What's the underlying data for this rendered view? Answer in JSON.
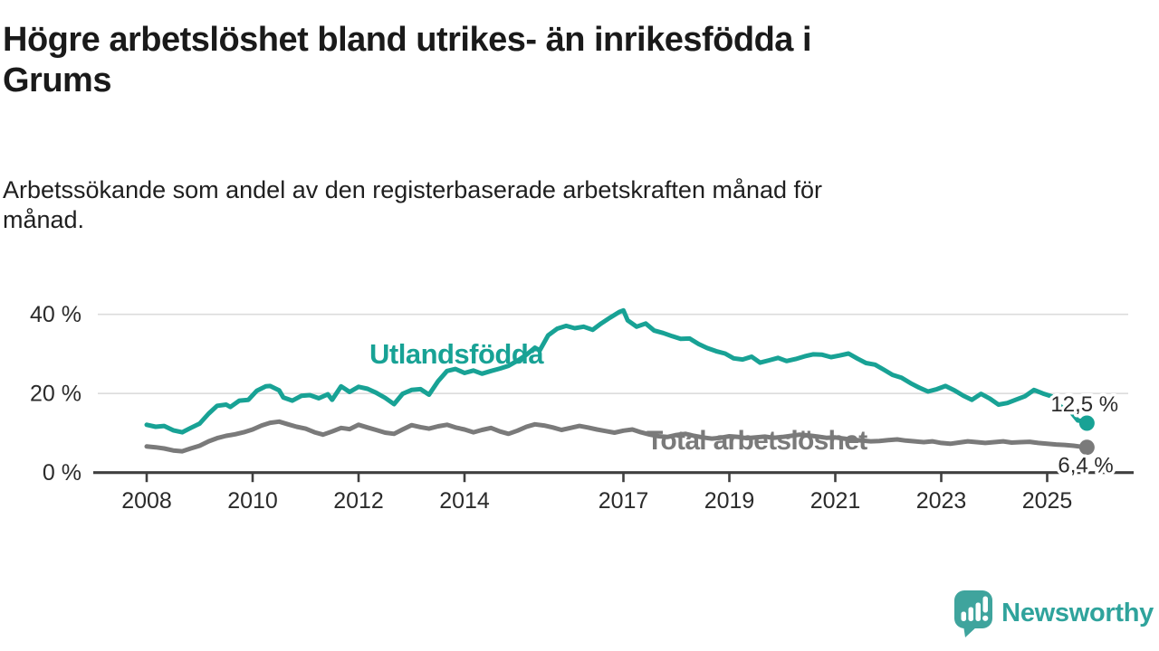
{
  "title": "Högre arbetslöshet bland utrikes- än inrikesfödda i\nGrums",
  "subtitle": "Arbetssökande som andel av den registerbaserade arbetskraften månad för\nmånad.",
  "branding": {
    "logo_text": "Newsworthy",
    "logo_icon": "newsworthy-speech-bubble-bar-chart-icon"
  },
  "colors": {
    "foreign_born_line": "#18A295",
    "total_line": "#7A7A7A",
    "axis": "#3F3F3F",
    "gridline": "#DCDCDC",
    "tick_text": "#2B2B2B",
    "logo_teal": "#3FA49D",
    "title_text": "#1A1A1A"
  },
  "chart_data": {
    "type": "line",
    "title": "Högre arbetslöshet bland utrikes- än inrikesfödda i Grums",
    "subtitle": "Arbetssökande som andel av den registerbaserade arbetskraften månad för månad.",
    "xlabel": "",
    "ylabel": "",
    "grid": "horizontal",
    "legend_position": "inline-labels",
    "x_axis": {
      "unit": "year",
      "range": [
        2007.95,
        2026.5
      ],
      "ticks": [
        2008,
        2010,
        2012,
        2014,
        2017,
        2019,
        2021,
        2023,
        2025
      ],
      "tick_labels": [
        "2008",
        "2010",
        "2012",
        "2014",
        "2017",
        "2019",
        "2021",
        "2023",
        "2025"
      ]
    },
    "y_axis": {
      "unit": "%",
      "range": [
        0,
        44
      ],
      "ticks": [
        0,
        20,
        40
      ],
      "tick_labels": [
        "0 %",
        "20 %",
        "40 %"
      ]
    },
    "series": [
      {
        "name": "Utlandsfödda",
        "color": "#18A295",
        "end_label": "12,5 %",
        "end_value": 12.5,
        "points": [
          [
            2008.0,
            12.1
          ],
          [
            2008.17,
            11.6
          ],
          [
            2008.33,
            11.8
          ],
          [
            2008.5,
            10.7
          ],
          [
            2008.67,
            10.2
          ],
          [
            2008.83,
            11.3
          ],
          [
            2009.0,
            12.4
          ],
          [
            2009.17,
            14.9
          ],
          [
            2009.33,
            16.9
          ],
          [
            2009.5,
            17.2
          ],
          [
            2009.58,
            16.6
          ],
          [
            2009.75,
            18.2
          ],
          [
            2009.92,
            18.4
          ],
          [
            2010.08,
            20.7
          ],
          [
            2010.25,
            21.8
          ],
          [
            2010.33,
            21.9
          ],
          [
            2010.5,
            20.8
          ],
          [
            2010.58,
            19.0
          ],
          [
            2010.75,
            18.2
          ],
          [
            2010.92,
            19.4
          ],
          [
            2011.08,
            19.6
          ],
          [
            2011.25,
            18.8
          ],
          [
            2011.42,
            19.8
          ],
          [
            2011.5,
            18.4
          ],
          [
            2011.67,
            21.8
          ],
          [
            2011.83,
            20.4
          ],
          [
            2012.0,
            21.7
          ],
          [
            2012.17,
            21.2
          ],
          [
            2012.33,
            20.2
          ],
          [
            2012.5,
            18.9
          ],
          [
            2012.67,
            17.3
          ],
          [
            2012.83,
            19.9
          ],
          [
            2013.0,
            20.9
          ],
          [
            2013.17,
            21.1
          ],
          [
            2013.33,
            19.7
          ],
          [
            2013.5,
            23.1
          ],
          [
            2013.67,
            25.7
          ],
          [
            2013.83,
            26.2
          ],
          [
            2014.0,
            25.2
          ],
          [
            2014.17,
            25.8
          ],
          [
            2014.33,
            25.0
          ],
          [
            2014.5,
            25.7
          ],
          [
            2014.67,
            26.3
          ],
          [
            2014.83,
            27.0
          ],
          [
            2015.0,
            28.3
          ],
          [
            2015.17,
            29.8
          ],
          [
            2015.33,
            31.6
          ],
          [
            2015.42,
            30.9
          ],
          [
            2015.58,
            34.7
          ],
          [
            2015.75,
            36.4
          ],
          [
            2015.92,
            37.1
          ],
          [
            2016.08,
            36.5
          ],
          [
            2016.25,
            36.9
          ],
          [
            2016.42,
            36.1
          ],
          [
            2016.58,
            37.7
          ],
          [
            2016.75,
            39.2
          ],
          [
            2016.92,
            40.6
          ],
          [
            2017.0,
            41.0
          ],
          [
            2017.08,
            38.5
          ],
          [
            2017.25,
            36.9
          ],
          [
            2017.42,
            37.7
          ],
          [
            2017.58,
            35.9
          ],
          [
            2017.75,
            35.3
          ],
          [
            2017.92,
            34.5
          ],
          [
            2018.08,
            33.8
          ],
          [
            2018.25,
            33.9
          ],
          [
            2018.42,
            32.5
          ],
          [
            2018.58,
            31.5
          ],
          [
            2018.75,
            30.7
          ],
          [
            2018.92,
            30.1
          ],
          [
            2019.08,
            28.9
          ],
          [
            2019.25,
            28.6
          ],
          [
            2019.42,
            29.3
          ],
          [
            2019.58,
            27.8
          ],
          [
            2019.75,
            28.4
          ],
          [
            2019.92,
            29.0
          ],
          [
            2020.08,
            28.2
          ],
          [
            2020.25,
            28.7
          ],
          [
            2020.42,
            29.4
          ],
          [
            2020.58,
            29.9
          ],
          [
            2020.75,
            29.8
          ],
          [
            2020.92,
            29.2
          ],
          [
            2021.08,
            29.6
          ],
          [
            2021.25,
            30.1
          ],
          [
            2021.42,
            28.8
          ],
          [
            2021.58,
            27.7
          ],
          [
            2021.75,
            27.3
          ],
          [
            2021.92,
            26.0
          ],
          [
            2022.08,
            24.7
          ],
          [
            2022.25,
            24.0
          ],
          [
            2022.42,
            22.6
          ],
          [
            2022.58,
            21.5
          ],
          [
            2022.75,
            20.5
          ],
          [
            2022.92,
            21.1
          ],
          [
            2023.08,
            21.9
          ],
          [
            2023.25,
            20.8
          ],
          [
            2023.42,
            19.4
          ],
          [
            2023.58,
            18.4
          ],
          [
            2023.75,
            19.9
          ],
          [
            2023.92,
            18.7
          ],
          [
            2024.08,
            17.2
          ],
          [
            2024.25,
            17.6
          ],
          [
            2024.42,
            18.5
          ],
          [
            2024.58,
            19.3
          ],
          [
            2024.75,
            20.9
          ],
          [
            2024.92,
            20.0
          ],
          [
            2025.08,
            19.3
          ],
          [
            2025.25,
            16.7
          ],
          [
            2025.42,
            15.8
          ],
          [
            2025.58,
            13.2
          ],
          [
            2025.67,
            13.0
          ],
          [
            2025.75,
            12.5
          ]
        ]
      },
      {
        "name": "Total arbetslöshet",
        "color": "#7A7A7A",
        "end_label": "6,4 %",
        "end_value": 6.4,
        "points": [
          [
            2008.0,
            6.6
          ],
          [
            2008.17,
            6.4
          ],
          [
            2008.33,
            6.1
          ],
          [
            2008.5,
            5.6
          ],
          [
            2008.67,
            5.4
          ],
          [
            2008.83,
            6.1
          ],
          [
            2009.0,
            6.8
          ],
          [
            2009.17,
            7.9
          ],
          [
            2009.33,
            8.7
          ],
          [
            2009.5,
            9.3
          ],
          [
            2009.67,
            9.7
          ],
          [
            2009.83,
            10.2
          ],
          [
            2010.0,
            10.9
          ],
          [
            2010.17,
            11.9
          ],
          [
            2010.33,
            12.6
          ],
          [
            2010.5,
            12.9
          ],
          [
            2010.67,
            12.2
          ],
          [
            2010.83,
            11.6
          ],
          [
            2011.0,
            11.1
          ],
          [
            2011.17,
            10.2
          ],
          [
            2011.33,
            9.6
          ],
          [
            2011.5,
            10.4
          ],
          [
            2011.67,
            11.3
          ],
          [
            2011.83,
            11.0
          ],
          [
            2012.0,
            12.1
          ],
          [
            2012.17,
            11.4
          ],
          [
            2012.33,
            10.8
          ],
          [
            2012.5,
            10.1
          ],
          [
            2012.67,
            9.8
          ],
          [
            2012.83,
            10.9
          ],
          [
            2013.0,
            12.0
          ],
          [
            2013.17,
            11.5
          ],
          [
            2013.33,
            11.1
          ],
          [
            2013.5,
            11.7
          ],
          [
            2013.67,
            12.1
          ],
          [
            2013.83,
            11.4
          ],
          [
            2014.0,
            10.9
          ],
          [
            2014.17,
            10.2
          ],
          [
            2014.33,
            10.8
          ],
          [
            2014.5,
            11.3
          ],
          [
            2014.67,
            10.4
          ],
          [
            2014.83,
            9.8
          ],
          [
            2015.0,
            10.6
          ],
          [
            2015.17,
            11.6
          ],
          [
            2015.33,
            12.2
          ],
          [
            2015.5,
            11.9
          ],
          [
            2015.67,
            11.4
          ],
          [
            2015.83,
            10.8
          ],
          [
            2016.0,
            11.3
          ],
          [
            2016.17,
            11.8
          ],
          [
            2016.33,
            11.4
          ],
          [
            2016.5,
            10.9
          ],
          [
            2016.67,
            10.5
          ],
          [
            2016.83,
            10.1
          ],
          [
            2017.0,
            10.6
          ],
          [
            2017.17,
            10.9
          ],
          [
            2017.33,
            10.2
          ],
          [
            2017.5,
            9.6
          ],
          [
            2017.67,
            9.2
          ],
          [
            2017.83,
            9.0
          ],
          [
            2018.0,
            9.5
          ],
          [
            2018.17,
            9.8
          ],
          [
            2018.33,
            9.3
          ],
          [
            2018.5,
            8.9
          ],
          [
            2018.67,
            8.6
          ],
          [
            2018.83,
            8.8
          ],
          [
            2019.0,
            9.2
          ],
          [
            2019.17,
            9.0
          ],
          [
            2019.33,
            8.7
          ],
          [
            2019.5,
            8.9
          ],
          [
            2019.67,
            9.1
          ],
          [
            2019.83,
            8.8
          ],
          [
            2020.0,
            9.0
          ],
          [
            2020.17,
            9.3
          ],
          [
            2020.33,
            9.6
          ],
          [
            2020.5,
            9.4
          ],
          [
            2020.67,
            9.1
          ],
          [
            2020.83,
            8.8
          ],
          [
            2021.0,
            8.9
          ],
          [
            2021.17,
            8.6
          ],
          [
            2021.33,
            8.3
          ],
          [
            2021.5,
            8.1
          ],
          [
            2021.67,
            7.9
          ],
          [
            2021.83,
            8.0
          ],
          [
            2022.0,
            8.2
          ],
          [
            2022.17,
            8.4
          ],
          [
            2022.33,
            8.1
          ],
          [
            2022.5,
            7.9
          ],
          [
            2022.67,
            7.7
          ],
          [
            2022.83,
            7.9
          ],
          [
            2023.0,
            7.5
          ],
          [
            2023.17,
            7.3
          ],
          [
            2023.33,
            7.6
          ],
          [
            2023.5,
            7.9
          ],
          [
            2023.67,
            7.7
          ],
          [
            2023.83,
            7.5
          ],
          [
            2024.0,
            7.7
          ],
          [
            2024.17,
            7.9
          ],
          [
            2024.33,
            7.6
          ],
          [
            2024.5,
            7.7
          ],
          [
            2024.67,
            7.8
          ],
          [
            2024.83,
            7.5
          ],
          [
            2025.0,
            7.3
          ],
          [
            2025.17,
            7.1
          ],
          [
            2025.33,
            7.0
          ],
          [
            2025.5,
            6.8
          ],
          [
            2025.67,
            6.5
          ],
          [
            2025.75,
            6.4
          ]
        ]
      }
    ]
  }
}
